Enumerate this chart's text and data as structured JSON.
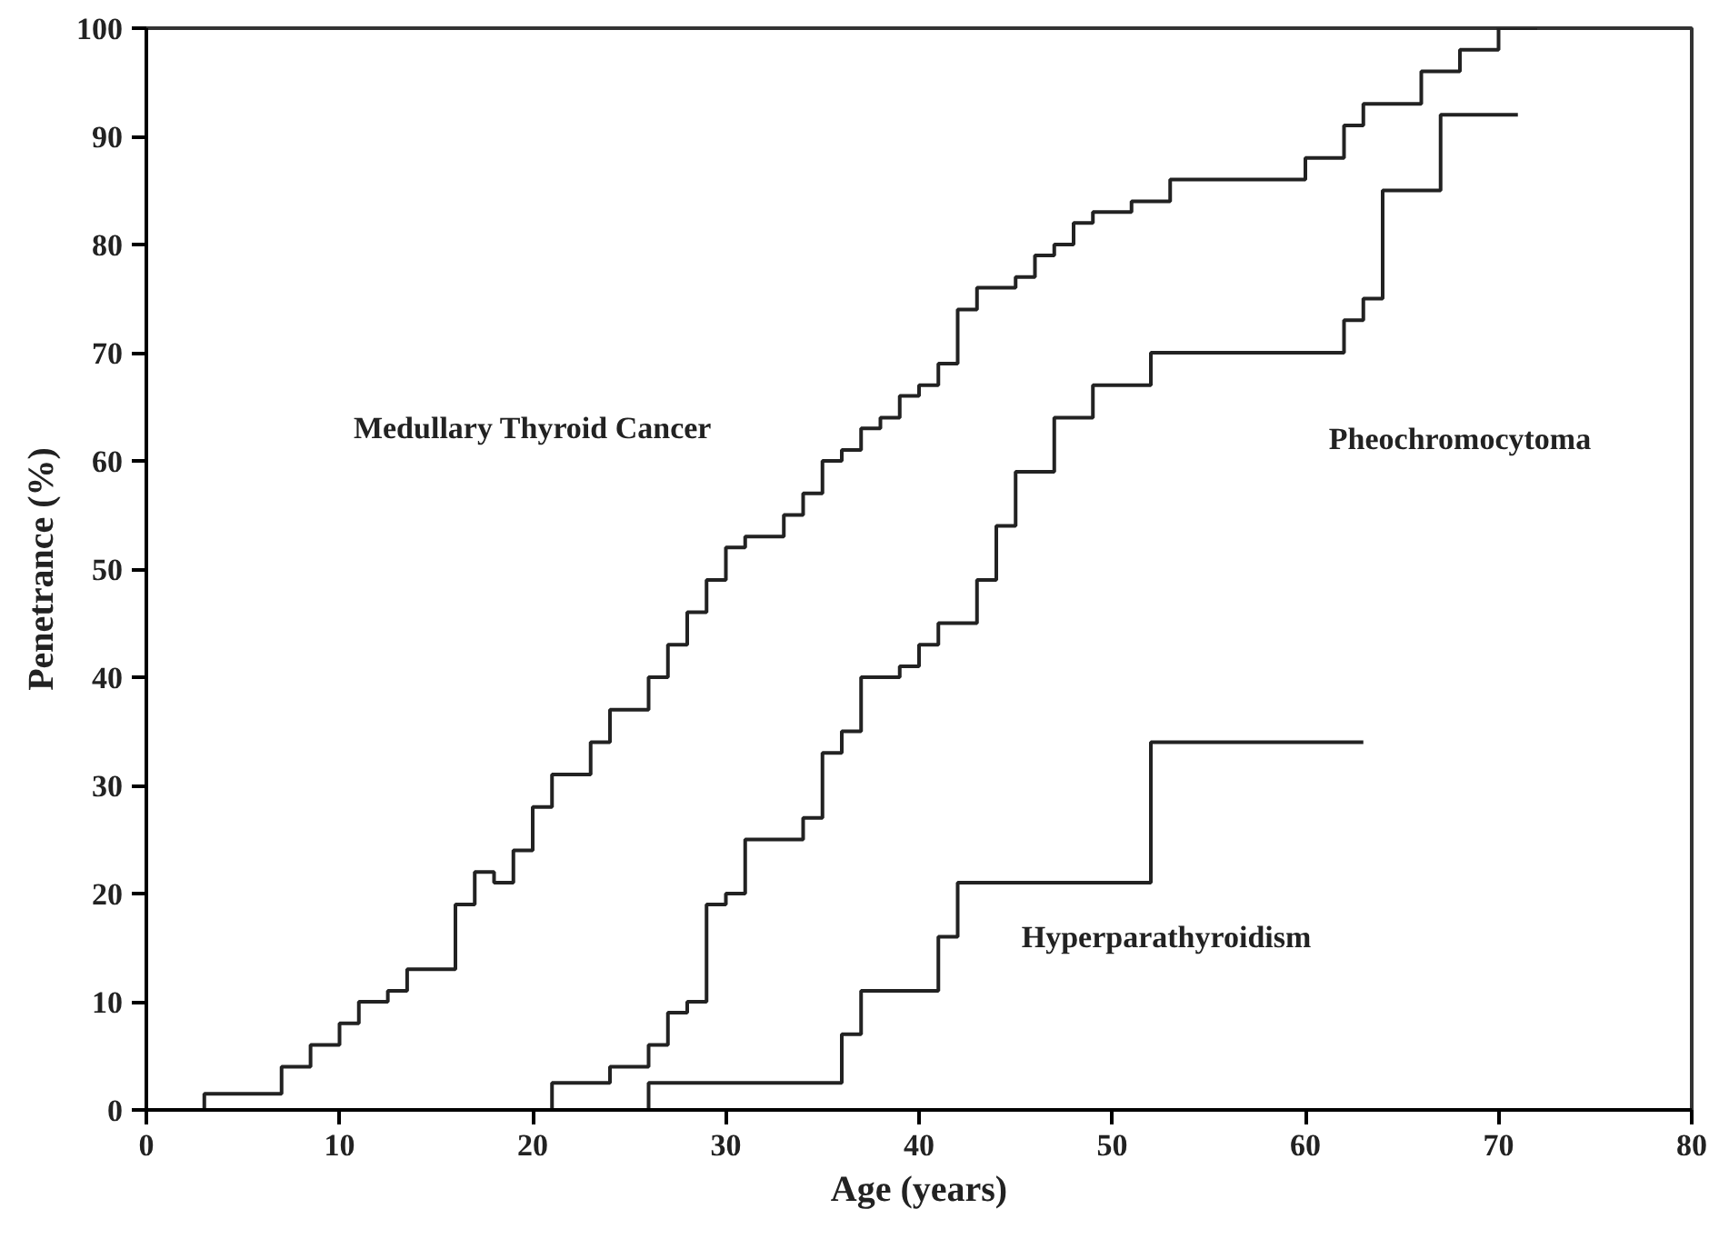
{
  "chart_data": {
    "type": "step",
    "xlabel": "Age (years)",
    "ylabel": "Penetrance (%)",
    "xlim": [
      0,
      80
    ],
    "ylim": [
      0,
      100
    ],
    "xticks": [
      0,
      10,
      20,
      30,
      40,
      50,
      60,
      70,
      80
    ],
    "yticks": [
      0,
      10,
      20,
      30,
      40,
      50,
      60,
      70,
      80,
      90,
      100
    ],
    "grid": false,
    "series": [
      {
        "color": "#222222",
        "x": [
          0,
          3,
          7,
          8.5,
          10,
          11,
          12.5,
          13.5,
          16,
          17,
          18,
          19,
          20,
          21,
          23,
          24,
          26,
          27,
          28,
          29,
          30,
          31,
          33,
          34,
          35,
          36,
          37,
          38,
          39,
          40,
          41,
          42,
          43,
          45,
          46,
          47,
          48,
          49,
          51,
          53,
          60,
          62,
          63,
          66,
          68,
          70,
          72
        ],
        "values": [
          0,
          1.5,
          4,
          6,
          8,
          10,
          11,
          13,
          19,
          22,
          21,
          24,
          28,
          31,
          34,
          37,
          40,
          43,
          46,
          49,
          52,
          53,
          55,
          57,
          60,
          61,
          63,
          64,
          66,
          67,
          69,
          74,
          76,
          77,
          79,
          80,
          82,
          83,
          84,
          86,
          88,
          91,
          93,
          96,
          98,
          100,
          100
        ]
      },
      {
        "color": "#222222",
        "x": [
          0,
          21,
          24,
          26,
          27,
          28,
          29,
          30,
          31,
          34,
          35,
          36,
          37,
          39,
          40,
          41,
          43,
          44,
          45,
          47,
          49,
          52,
          62,
          63,
          64,
          67,
          71
        ],
        "values": [
          0,
          2.5,
          4,
          6,
          9,
          10,
          19,
          20,
          25,
          27,
          33,
          35,
          40,
          41,
          43,
          45,
          49,
          54,
          59,
          64,
          67,
          70,
          73,
          75,
          85,
          92,
          92
        ]
      },
      {
        "color": "#222222",
        "x": [
          0,
          26,
          36,
          37,
          40,
          41,
          42,
          52,
          63
        ],
        "values": [
          0,
          2.5,
          7,
          11,
          11,
          16,
          21,
          34,
          34
        ]
      }
    ],
    "annotations": [
      "Medullary Thyroid Cancer",
      "Pheochromocytoma",
      "Hyperparathyroidism"
    ]
  }
}
